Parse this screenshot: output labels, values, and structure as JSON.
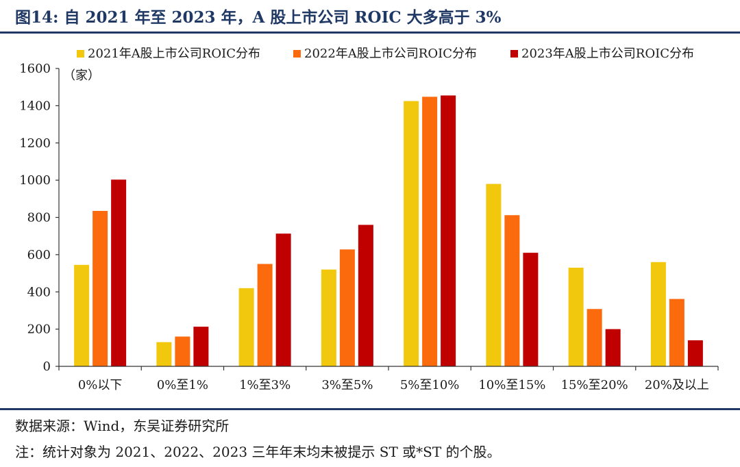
{
  "figure": {
    "title": "图14: 自 2021 年至 2023 年，A 股上市公司 ROIC 大多高于 3%",
    "source": "数据来源：Wind，东吴证券研究所",
    "note": "注：统计对象为 2021、2022、2023 三年年末均未被提示 ST 或*ST 的个股。"
  },
  "colors": {
    "s2021": "#f2c80f",
    "s2022": "#fb6a0c",
    "s2023": "#c00000",
    "rule": "#1f3864"
  },
  "chart_data": {
    "type": "bar",
    "title": "",
    "xlabel": "",
    "ylabel": "（家）",
    "ylim": [
      0,
      1600
    ],
    "yticks": [
      "0",
      "200",
      "400",
      "600",
      "800",
      "1000",
      "1200",
      "1400",
      "1600"
    ],
    "grid": false,
    "legend_position": "top",
    "categories": [
      "0%以下",
      "0%至1%",
      "1%至3%",
      "3%至5%",
      "5%至10%",
      "10%至15%",
      "15%至20%",
      "20%及以上"
    ],
    "series": [
      {
        "name": "2021年A股上市公司ROIC分布",
        "values": [
          545,
          130,
          420,
          520,
          1425,
          980,
          530,
          560
        ]
      },
      {
        "name": "2022年A股上市公司ROIC分布",
        "values": [
          835,
          160,
          550,
          628,
          1448,
          812,
          308,
          362
        ]
      },
      {
        "name": "2023年A股上市公司ROIC分布",
        "values": [
          1003,
          213,
          713,
          760,
          1455,
          610,
          200,
          140
        ]
      }
    ]
  }
}
